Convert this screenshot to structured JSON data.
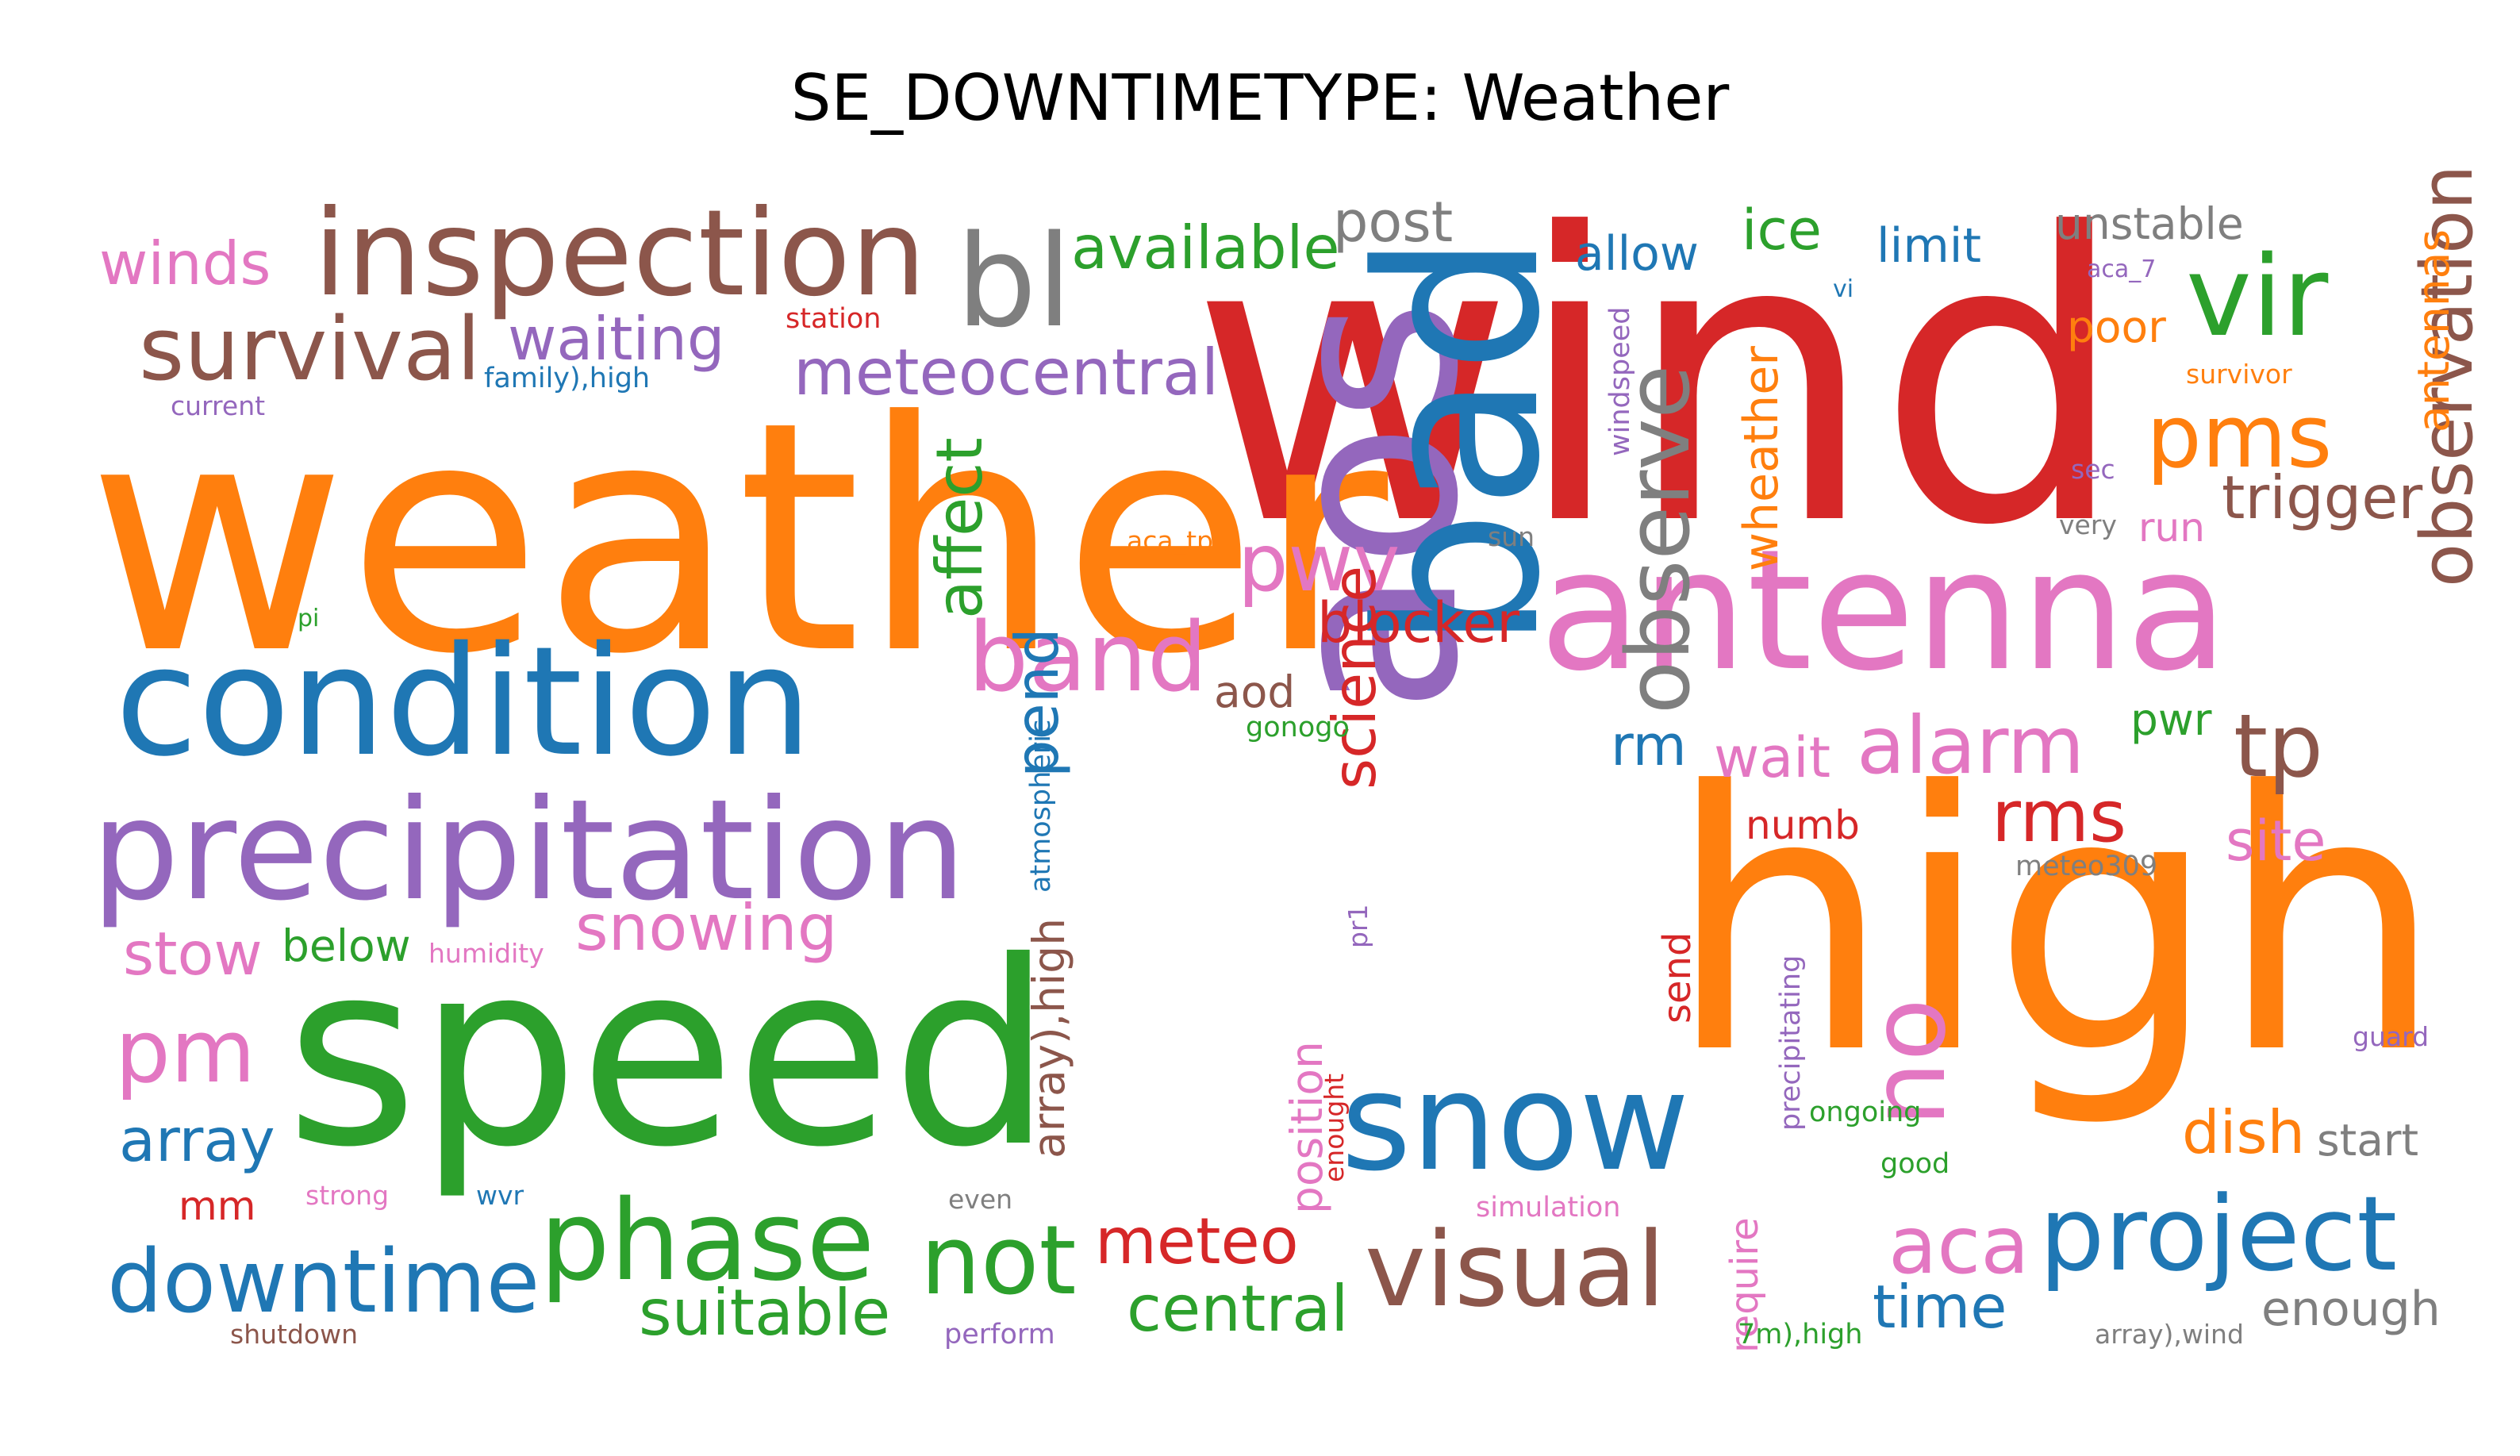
{
  "title": "SE_DOWNTIMETYPE: Weather",
  "palette": {
    "blue": "#1f77b4",
    "orange": "#ff7f0e",
    "green": "#2ca02c",
    "red": "#d62728",
    "purple": "#9467bd",
    "brown": "#8c564b",
    "pink": "#e377c2",
    "gray": "#7f7f7f"
  },
  "words": [
    {
      "text": "wind",
      "color": "red",
      "weight": 100
    },
    {
      "text": "weather",
      "color": "orange",
      "weight": 78
    },
    {
      "text": "high",
      "color": "orange",
      "weight": 88
    },
    {
      "text": "aos",
      "color": "purple",
      "weight": 72
    },
    {
      "text": "speed",
      "color": "green",
      "weight": 65
    },
    {
      "text": "bad",
      "color": "blue",
      "weight": 60
    },
    {
      "text": "antenna",
      "color": "pink",
      "weight": 50
    },
    {
      "text": "condition",
      "color": "blue",
      "weight": 45
    },
    {
      "text": "precipitation",
      "color": "purple",
      "weight": 40
    },
    {
      "text": "snow",
      "color": "blue",
      "weight": 38
    },
    {
      "text": "inspection",
      "color": "brown",
      "weight": 32
    },
    {
      "text": "no",
      "color": "pink",
      "weight": 30
    },
    {
      "text": "phase",
      "color": "green",
      "weight": 28
    },
    {
      "text": "project",
      "color": "blue",
      "weight": 28
    },
    {
      "text": "visual",
      "color": "brown",
      "weight": 27
    },
    {
      "text": "bl",
      "color": "gray",
      "weight": 26
    },
    {
      "text": "not",
      "color": "green",
      "weight": 26
    },
    {
      "text": "vir",
      "color": "green",
      "weight": 26
    },
    {
      "text": "observe",
      "color": "gray",
      "weight": 24
    },
    {
      "text": "downtime",
      "color": "blue",
      "weight": 24
    },
    {
      "text": "survival",
      "color": "brown",
      "weight": 23
    },
    {
      "text": "band",
      "color": "pink",
      "weight": 23
    },
    {
      "text": "alarm",
      "color": "pink",
      "weight": 22
    },
    {
      "text": "pms",
      "color": "orange",
      "weight": 22
    },
    {
      "text": "pm",
      "color": "pink",
      "weight": 22
    },
    {
      "text": "observation",
      "color": "brown",
      "weight": 21
    },
    {
      "text": "tp",
      "color": "brown",
      "weight": 21
    },
    {
      "text": "pwv",
      "color": "pink",
      "weight": 20
    },
    {
      "text": "aca",
      "color": "pink",
      "weight": 20
    },
    {
      "text": "snowing",
      "color": "pink",
      "weight": 18
    },
    {
      "text": "suitable",
      "color": "green",
      "weight": 17
    },
    {
      "text": "meteocentral",
      "color": "purple",
      "weight": 17
    },
    {
      "text": "rms",
      "color": "red",
      "weight": 17
    },
    {
      "text": "affect",
      "color": "green",
      "weight": 17
    },
    {
      "text": "pend",
      "color": "blue",
      "weight": 17
    },
    {
      "text": "science",
      "color": "red",
      "weight": 17
    },
    {
      "text": "meteo",
      "color": "red",
      "weight": 17
    },
    {
      "text": "central",
      "color": "green",
      "weight": 17
    },
    {
      "text": "time",
      "color": "blue",
      "weight": 17
    },
    {
      "text": "available",
      "color": "green",
      "weight": 17
    },
    {
      "text": "waiting",
      "color": "purple",
      "weight": 16
    },
    {
      "text": "winds",
      "color": "pink",
      "weight": 16
    },
    {
      "text": "stow",
      "color": "pink",
      "weight": 16
    },
    {
      "text": "array",
      "color": "blue",
      "weight": 16
    },
    {
      "text": "trigger",
      "color": "brown",
      "weight": 16
    },
    {
      "text": "blocker",
      "color": "red",
      "weight": 16
    },
    {
      "text": "rm",
      "color": "blue",
      "weight": 16
    },
    {
      "text": "wait",
      "color": "pink",
      "weight": 16
    },
    {
      "text": "site",
      "color": "pink",
      "weight": 16
    },
    {
      "text": "dish",
      "color": "orange",
      "weight": 16
    },
    {
      "text": "post",
      "color": "gray",
      "weight": 15
    },
    {
      "text": "ice",
      "color": "green",
      "weight": 15
    },
    {
      "text": "wheather",
      "color": "orange",
      "weight": 15
    },
    {
      "text": "array),high",
      "color": "brown",
      "weight": 15
    },
    {
      "text": "enough",
      "color": "gray",
      "weight": 14
    },
    {
      "text": "unstable",
      "color": "gray",
      "weight": 14
    },
    {
      "text": "limit",
      "color": "blue",
      "weight": 14
    },
    {
      "text": "allow",
      "color": "blue",
      "weight": 14
    },
    {
      "text": "below",
      "color": "green",
      "weight": 14
    },
    {
      "text": "aod",
      "color": "brown",
      "weight": 14
    },
    {
      "text": "antennas",
      "color": "orange",
      "weight": 14
    },
    {
      "text": "poor",
      "color": "orange",
      "weight": 14
    },
    {
      "text": "pwr",
      "color": "green",
      "weight": 14
    },
    {
      "text": "position",
      "color": "pink",
      "weight": 14
    },
    {
      "text": "start",
      "color": "gray",
      "weight": 14
    },
    {
      "text": "mm",
      "color": "red",
      "weight": 13
    },
    {
      "text": "numb",
      "color": "red",
      "weight": 13
    },
    {
      "text": "run",
      "color": "pink",
      "weight": 13
    },
    {
      "text": "send",
      "color": "red",
      "weight": 13
    },
    {
      "text": "require",
      "color": "pink",
      "weight": 13
    },
    {
      "text": "windspeed",
      "color": "purple",
      "weight": 12
    },
    {
      "text": "atmospheric",
      "color": "blue",
      "weight": 12
    },
    {
      "text": "meteo309",
      "color": "gray",
      "weight": 12
    },
    {
      "text": "family),high",
      "color": "blue",
      "weight": 12
    },
    {
      "text": "station",
      "color": "red",
      "weight": 12
    },
    {
      "text": "current",
      "color": "purple",
      "weight": 12
    },
    {
      "text": "aca_tp",
      "color": "orange",
      "weight": 12
    },
    {
      "text": "sun",
      "color": "gray",
      "weight": 12
    },
    {
      "text": "pi",
      "color": "green",
      "weight": 12
    },
    {
      "text": "humidity",
      "color": "pink",
      "weight": 12
    },
    {
      "text": "strong",
      "color": "pink",
      "weight": 12
    },
    {
      "text": "wvr",
      "color": "blue",
      "weight": 12
    },
    {
      "text": "shutdown",
      "color": "brown",
      "weight": 12
    },
    {
      "text": "even",
      "color": "gray",
      "weight": 12
    },
    {
      "text": "perform",
      "color": "purple",
      "weight": 12
    },
    {
      "text": "gonogo",
      "color": "green",
      "weight": 12
    },
    {
      "text": "pr1",
      "color": "purple",
      "weight": 12
    },
    {
      "text": "enought",
      "color": "red",
      "weight": 12
    },
    {
      "text": "simulation",
      "color": "pink",
      "weight": 12
    },
    {
      "text": "precipitating",
      "color": "purple",
      "weight": 12
    },
    {
      "text": "ongoing",
      "color": "green",
      "weight": 12
    },
    {
      "text": "good",
      "color": "green",
      "weight": 12
    },
    {
      "text": "7m),high",
      "color": "green",
      "weight": 12
    },
    {
      "text": "array),wind",
      "color": "gray",
      "weight": 12
    },
    {
      "text": "guard",
      "color": "purple",
      "weight": 12
    },
    {
      "text": "vi",
      "color": "blue",
      "weight": 12
    },
    {
      "text": "aca_7",
      "color": "purple",
      "weight": 12
    },
    {
      "text": "survivor",
      "color": "orange",
      "weight": 12
    },
    {
      "text": "sec",
      "color": "purple",
      "weight": 12
    },
    {
      "text": "very",
      "color": "gray",
      "weight": 12
    }
  ]
}
